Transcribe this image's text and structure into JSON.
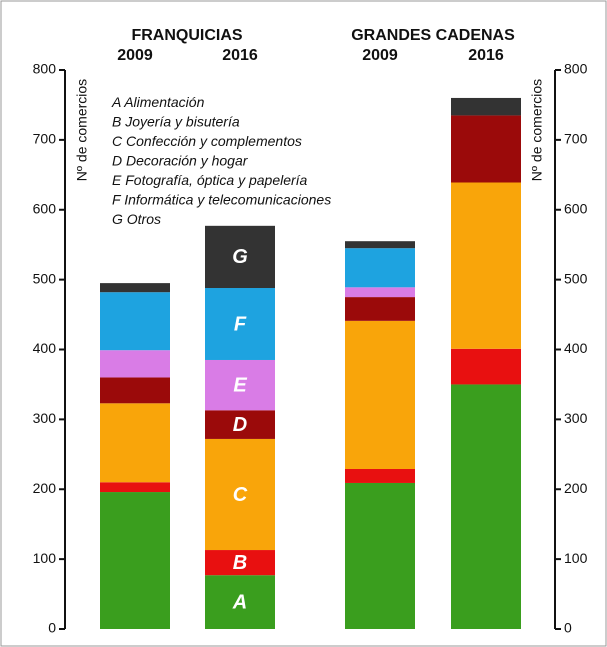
{
  "chart_data": {
    "type": "stacked_bar",
    "groups": [
      "FRANQUICIAS",
      "GRANDES CADENAS"
    ],
    "categories": [
      "2009",
      "2016",
      "2009",
      "2016"
    ],
    "ylabel": "Nº de comercios",
    "y2label": "Nº de comercios",
    "ylim": [
      0,
      800
    ],
    "yticks": [
      0,
      100,
      200,
      300,
      400,
      500,
      600,
      700,
      800
    ],
    "y2lim": [
      0,
      800
    ],
    "y2ticks": [
      0,
      100,
      200,
      300,
      400,
      500,
      600,
      700,
      800
    ],
    "series": [
      {
        "letter": "A",
        "name": "Alimentación",
        "color": "#3a9e1e",
        "values": [
          196,
          77,
          209,
          350
        ]
      },
      {
        "letter": "B",
        "name": "Joyería y bisutería",
        "color": "#e81010",
        "values": [
          14,
          36,
          20,
          51
        ]
      },
      {
        "letter": "C",
        "name": "Confección y complementos",
        "color": "#f9a50a",
        "values": [
          113,
          159,
          212,
          238
        ]
      },
      {
        "letter": "D",
        "name": "Decoración y hogar",
        "color": "#9b0a0a",
        "values": [
          37,
          41,
          34,
          96
        ]
      },
      {
        "letter": "E",
        "name": "Fotografía, óptica y papelería",
        "color": "#d97ce6",
        "values": [
          39,
          72,
          14,
          0
        ]
      },
      {
        "letter": "F",
        "name": "Informática y telecomunicaciones",
        "color": "#1ea3e0",
        "values": [
          83,
          103,
          56,
          0
        ]
      },
      {
        "letter": "G",
        "name": "Otros",
        "color": "#333333",
        "values": [
          13,
          89,
          10,
          25
        ]
      }
    ]
  }
}
